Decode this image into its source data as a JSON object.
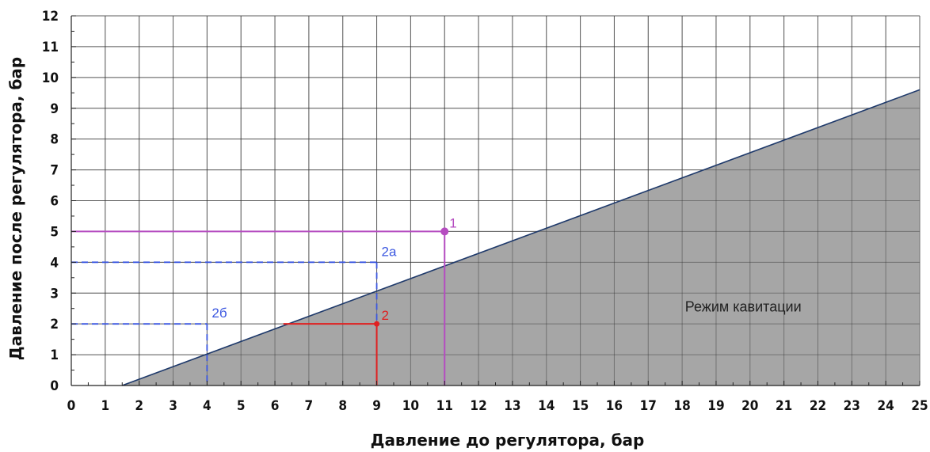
{
  "chart_data": {
    "type": "line",
    "xlabel": "Давление до регулятора, бар",
    "ylabel": "Давление после регулятора, бар",
    "xlim": [
      0,
      25
    ],
    "ylim": [
      0,
      12
    ],
    "x_ticks": [
      0,
      1,
      2,
      3,
      4,
      5,
      6,
      7,
      8,
      9,
      10,
      11,
      12,
      13,
      14,
      15,
      16,
      17,
      18,
      19,
      20,
      21,
      22,
      23,
      24,
      25
    ],
    "y_ticks": [
      0,
      1,
      2,
      3,
      4,
      5,
      6,
      7,
      8,
      9,
      10,
      11,
      12
    ],
    "grid": true,
    "cavitation_boundary": {
      "x": [
        1.5,
        25
      ],
      "y": [
        0,
        9.6
      ]
    },
    "region_label": "Режим кавитации",
    "region_color": "#a6a6a6",
    "boundary_color": "#1f3a6b",
    "points": [
      {
        "label": "1",
        "x": 11,
        "y": 5,
        "color": "#b54cc0"
      },
      {
        "label": "2",
        "x": 9,
        "y": 2,
        "color": "#e02020"
      }
    ],
    "guides": [
      {
        "label": "2a",
        "x": 9,
        "y": 4,
        "color": "#3b57e0",
        "dashed": true
      },
      {
        "label": "2б",
        "x": 4,
        "y": 2,
        "color": "#3b57e0",
        "dashed": true
      }
    ],
    "segment_2": {
      "from": {
        "x": 6.25,
        "y": 2
      },
      "to": {
        "x": 9,
        "y": 2
      },
      "color": "#e02020"
    }
  }
}
